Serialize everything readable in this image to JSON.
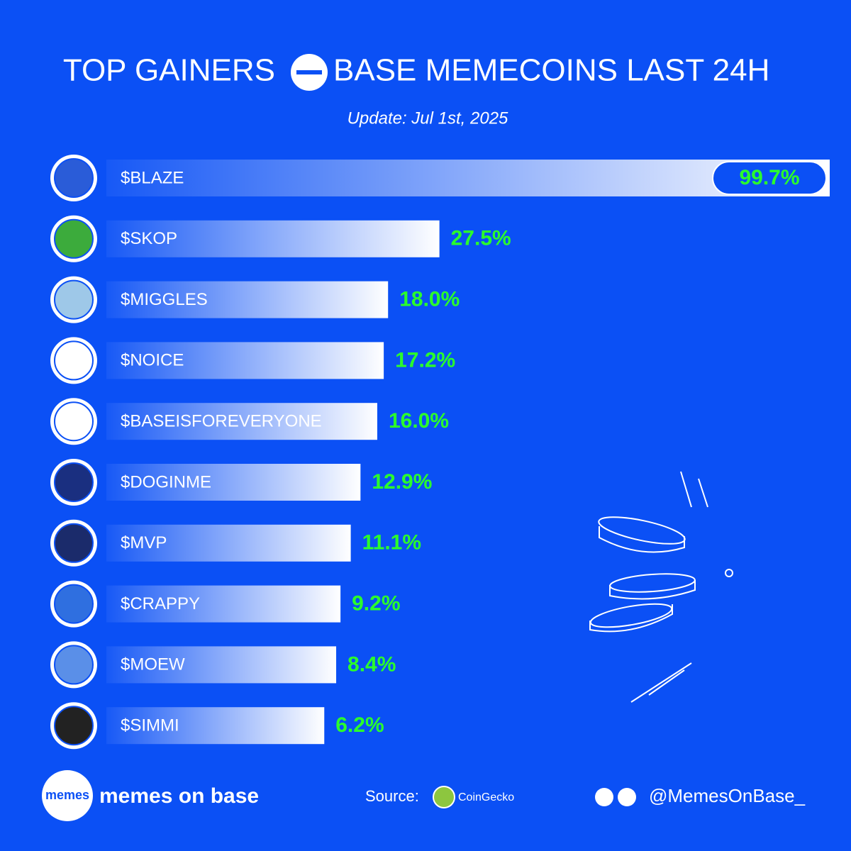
{
  "chart_data": {
    "type": "bar",
    "orientation": "horizontal",
    "title_left": "TOP GAINERS",
    "title_right": "BASE MEMECOINS LAST 24H",
    "subtitle": "Update: Jul 1st, 2025",
    "categories": [
      "$BLAZE",
      "$SKOP",
      "$MIGGLES",
      "$NOICE",
      "$BASEISFOREVERYONE",
      "$DOGINME",
      "$MVP",
      "$CRAPPY",
      "$MOEW",
      "$SIMMI"
    ],
    "values": [
      99.7,
      27.5,
      18.0,
      17.2,
      16.0,
      12.9,
      11.1,
      9.2,
      8.4,
      6.2
    ],
    "value_labels": [
      "99.7%",
      "27.5%",
      "18.0%",
      "17.2%",
      "16.0%",
      "12.9%",
      "11.1%",
      "9.2%",
      "8.4%",
      "6.2%"
    ],
    "color": "#ffffff",
    "label_color": "#2bff2b"
  },
  "footer": {
    "brand_logo": "memes",
    "brand": "memes on base",
    "source_label": "Source:",
    "source": "CoinGecko",
    "handle": "@MemesOnBase_"
  }
}
